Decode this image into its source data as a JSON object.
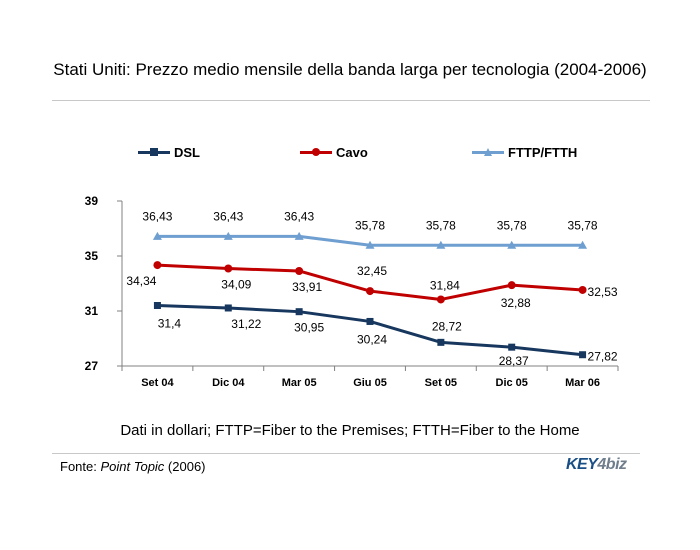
{
  "header": {
    "title": "Stati Uniti: Prezzo medio mensile della banda larga per tecnologia (2004-2006)"
  },
  "chart_data": {
    "type": "line",
    "categories": [
      "Set 04",
      "Dic 04",
      "Mar 05",
      "Giu 05",
      "Set 05",
      "Dic 05",
      "Mar 06"
    ],
    "ylim": [
      27,
      39
    ],
    "yticks": [
      27,
      31,
      35,
      39
    ],
    "grid": false,
    "legend_position": "top",
    "series": [
      {
        "name": "DSL",
        "color": "#17375e",
        "marker": "square",
        "values": [
          31.4,
          31.22,
          30.95,
          30.24,
          28.72,
          28.37,
          27.82
        ],
        "labels": [
          "31,4",
          "31,22",
          "30,95",
          "30,24",
          "28,72",
          "28,37",
          "27,82"
        ]
      },
      {
        "name": "Cavo",
        "color": "#c00000",
        "marker": "circle",
        "values": [
          34.34,
          34.09,
          33.91,
          32.45,
          31.84,
          32.88,
          32.53
        ],
        "labels": [
          "34,34",
          "34,09",
          "33,91",
          "32,45",
          "31,84",
          "32,88",
          "32,53"
        ]
      },
      {
        "name": "FTTP/FTTH",
        "color": "#6f9fd0",
        "marker": "triangle",
        "values": [
          36.43,
          36.43,
          36.43,
          35.78,
          35.78,
          35.78,
          35.78
        ],
        "labels": [
          "36,43",
          "36,43",
          "36,43",
          "35,78",
          "35,78",
          "35,78",
          "35,78"
        ]
      }
    ]
  },
  "footer": {
    "note": "Dati in dollari; FTTP=Fiber to the Premises; FTTH=Fiber to the Home",
    "source_prefix": "Fonte: ",
    "source_name": "Point Topic",
    "source_suffix": " (2006)",
    "logo_text_a": "KEY",
    "logo_text_b": "4biz"
  }
}
